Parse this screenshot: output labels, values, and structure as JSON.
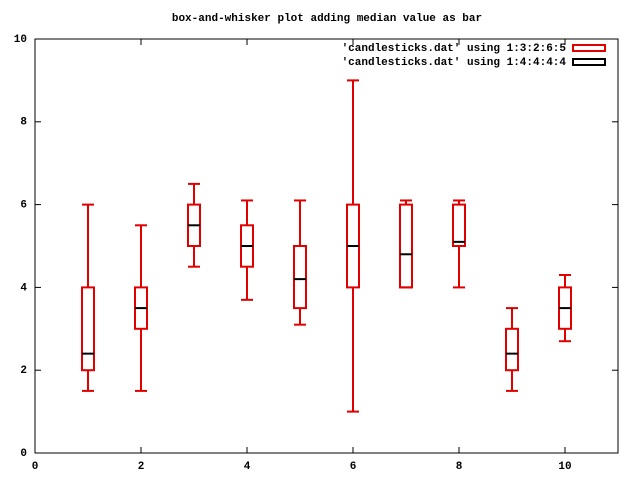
{
  "chart_data": {
    "type": "candlestick",
    "title": "box-and-whisker plot adding median value as bar",
    "x": [
      1,
      2,
      3,
      4,
      5,
      6,
      7,
      8,
      9,
      10
    ],
    "series": [
      {
        "name": "'candlesticks.dat' using 1:3:2:6:5",
        "color": "#e00000",
        "whisker_min": [
          1.5,
          1.5,
          4.5,
          3.7,
          3.1,
          1,
          4,
          4,
          1.5,
          2.7
        ],
        "box_min": [
          2,
          3,
          5,
          4.5,
          3.5,
          4,
          4,
          5,
          2,
          3
        ],
        "box_max": [
          4,
          4,
          6,
          5.5,
          5,
          6,
          6,
          6,
          3,
          4
        ],
        "whisker_max": [
          6,
          5.5,
          6.5,
          6.1,
          6.1,
          9,
          6.1,
          6.1,
          3.5,
          4.3
        ]
      },
      {
        "name": "'candlesticks.dat' using 1:4:4:4:4",
        "color": "#000000",
        "median": [
          2.4,
          3.5,
          5.5,
          5,
          4.2,
          5,
          4.8,
          5.1,
          2.4,
          3.5
        ]
      }
    ],
    "xlim": [
      0,
      11
    ],
    "xticks": [
      0,
      2,
      4,
      6,
      8,
      10
    ],
    "ylim": [
      0,
      10
    ],
    "yticks": [
      0,
      2,
      4,
      6,
      8,
      10
    ],
    "legend": "top-right",
    "grid": false
  }
}
